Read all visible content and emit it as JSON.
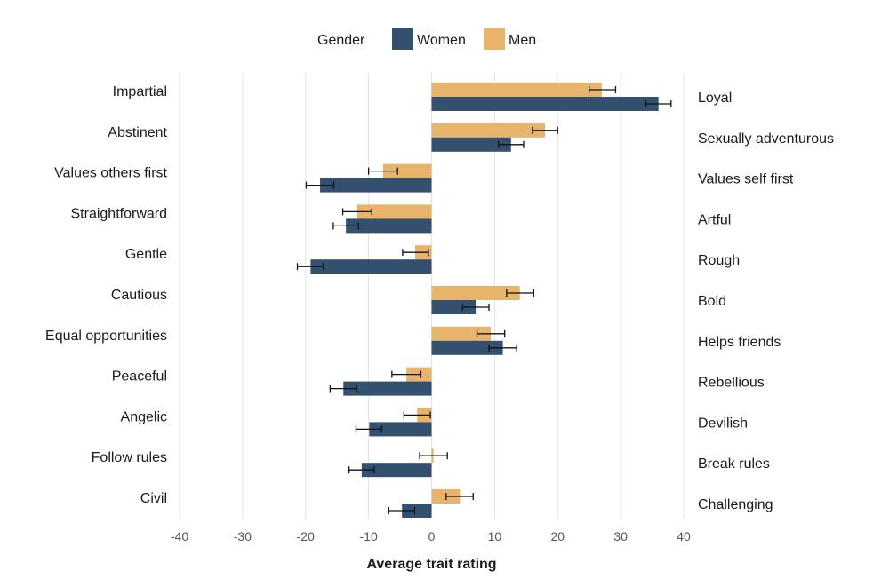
{
  "chart_data": {
    "type": "bar",
    "orientation": "horizontal",
    "legend": {
      "title": "Gender",
      "position": "top-center",
      "entries": [
        {
          "name": "Women",
          "color": "#34506f"
        },
        {
          "name": "Men",
          "color": "#e8b36a"
        }
      ]
    },
    "left_labels": [
      "Impartial",
      "Abstinent",
      "Values others first",
      "Straightforward",
      "Gentle",
      "Cautious",
      "Equal opportunities",
      "Peaceful",
      "Angelic",
      "Follow rules",
      "Civil"
    ],
    "right_labels": [
      "Loyal",
      "Sexually adventurous",
      "Values self first",
      "Artful",
      "Rough",
      "Bold",
      "Helps friends",
      "Rebellious",
      "Devilish",
      "Break rules",
      "Challenging"
    ],
    "series": [
      {
        "name": "Men",
        "color": "#e8b36a",
        "values": [
          27,
          18,
          -7.7,
          -11.8,
          -2.6,
          14,
          9.4,
          -4,
          -2.3,
          0.3,
          4.5
        ],
        "ci_low": [
          25,
          16,
          -10,
          -14.1,
          -4.6,
          11.9,
          7.2,
          -6.3,
          -4.4,
          -1.9,
          2.3
        ],
        "ci_high": [
          29.2,
          20,
          -5.4,
          -9.5,
          -0.5,
          16.2,
          11.6,
          -1.7,
          -0.2,
          2.5,
          6.6
        ]
      },
      {
        "name": "Women",
        "color": "#34506f",
        "values": [
          36,
          12.6,
          -17.7,
          -13.6,
          -19.2,
          7,
          11.3,
          -14,
          -9.9,
          -11.1,
          -4.7
        ],
        "ci_low": [
          34,
          10.6,
          -19.9,
          -15.6,
          -21.3,
          4.9,
          9.1,
          -16.1,
          -12,
          -13.1,
          -6.8
        ],
        "ci_high": [
          38,
          14.6,
          -15.5,
          -11.6,
          -17.2,
          9.1,
          13.5,
          -11.9,
          -7.9,
          -9.1,
          -2.7
        ]
      }
    ],
    "xlim": [
      -40,
      40
    ],
    "xticks": [
      -40,
      -30,
      -20,
      -10,
      0,
      10,
      20,
      30,
      40
    ],
    "xlabel": "Average trait rating",
    "ylabel": "",
    "grid": true
  }
}
